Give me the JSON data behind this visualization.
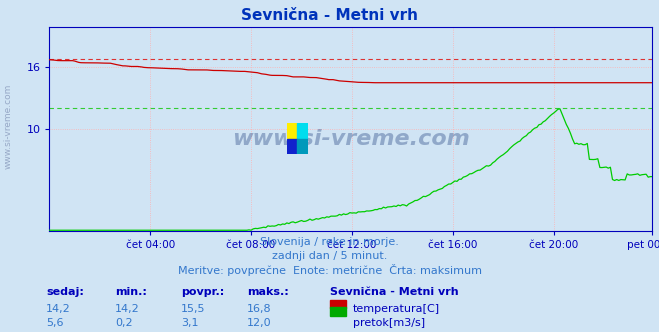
{
  "title": "Sevnična - Metni vrh",
  "bg_color": "#d0e4f4",
  "plot_bg_color": "#d0e4f4",
  "grid_color": "#ffb0b0",
  "x_tick_labels": [
    "čet 04:00",
    "čet 08:00",
    "čet 12:00",
    "čet 16:00",
    "čet 20:00",
    "pet 00:00"
  ],
  "x_tick_positions": [
    48,
    96,
    144,
    192,
    240,
    287
  ],
  "total_points": 288,
  "ylim_min": 0,
  "ylim_max": 20,
  "ylabel_ticks": [
    10,
    16
  ],
  "subtitle_lines": [
    "Slovenija / reke in morje.",
    "zadnji dan / 5 minut.",
    "Meritve: povprečne  Enote: metrične  Črta: maksimum"
  ],
  "footer_headers": [
    "sedaj:",
    "min.:",
    "povpr.:",
    "maks.:"
  ],
  "footer_row1": [
    "14,2",
    "14,2",
    "15,5",
    "16,8"
  ],
  "footer_row2": [
    "5,6",
    "0,2",
    "3,1",
    "12,0"
  ],
  "legend_title": "Sevnična - Metni vrh",
  "legend_items": [
    "temperatura[C]",
    "pretok[m3/s]"
  ],
  "legend_colors": [
    "#cc0000",
    "#00aa00"
  ],
  "temp_max": 16.8,
  "flow_max": 12.0,
  "temp_color": "#cc0000",
  "flow_color": "#00cc00",
  "dashed_color_temp": "#dd3333",
  "dashed_color_flow": "#33cc33",
  "axis_color": "#0000bb",
  "title_color": "#0033bb",
  "subtitle_color": "#3377cc",
  "footer_header_color": "#0000bb",
  "footer_value_color": "#3377cc"
}
